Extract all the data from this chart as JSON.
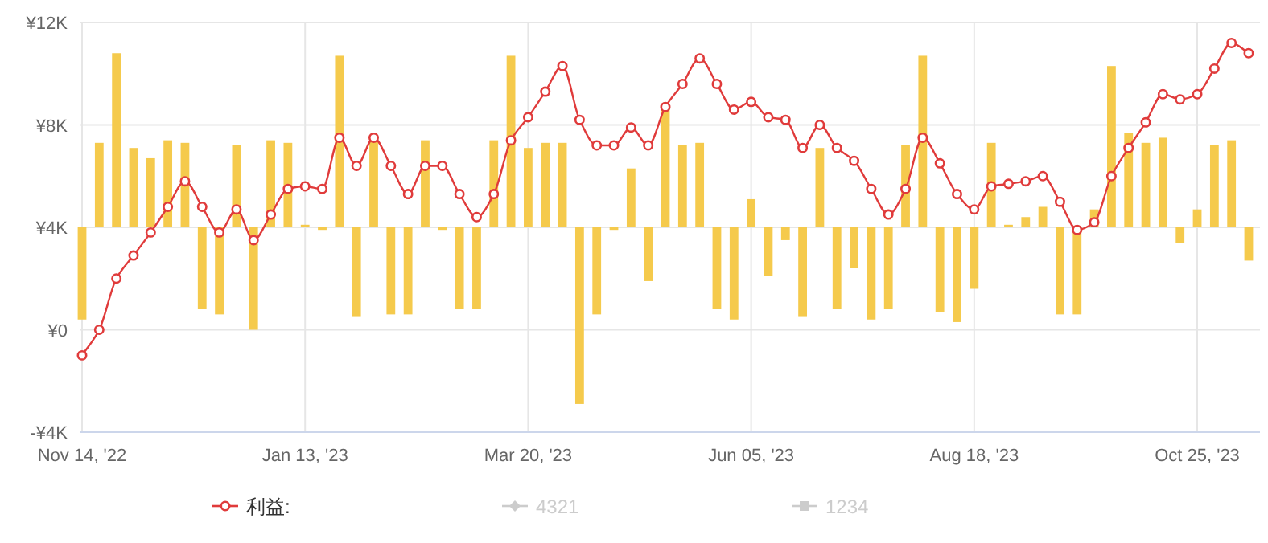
{
  "chart_data": {
    "type": "line",
    "categories": [
      "Nov 14, '22",
      null,
      null,
      null,
      null,
      null,
      null,
      null,
      null,
      null,
      null,
      null,
      null,
      "Jan 13, '23",
      null,
      null,
      null,
      null,
      null,
      null,
      null,
      null,
      null,
      null,
      null,
      null,
      "Mar 20, '23",
      null,
      null,
      null,
      null,
      null,
      null,
      null,
      null,
      null,
      null,
      null,
      null,
      "Jun 05, '23",
      null,
      null,
      null,
      null,
      null,
      null,
      null,
      null,
      null,
      null,
      null,
      null,
      "Aug 18, '23",
      null,
      null,
      null,
      null,
      null,
      null,
      null,
      null,
      null,
      null,
      null,
      null,
      "Oct 25, '23",
      null,
      null,
      null
    ],
    "series": [
      {
        "name": "利益:",
        "color": "#e03b3b",
        "marker": "circle",
        "values": [
          -1000,
          0,
          2000,
          2900,
          3800,
          4800,
          5800,
          4800,
          3800,
          4700,
          3500,
          4500,
          5500,
          5600,
          5500,
          7500,
          6400,
          7500,
          6400,
          5300,
          6400,
          6400,
          5300,
          4400,
          5300,
          7400,
          8300,
          9300,
          10300,
          8200,
          7200,
          7200,
          7900,
          7200,
          8700,
          9600,
          10600,
          9600,
          8600,
          8900,
          8300,
          8200,
          7100,
          8000,
          7100,
          6600,
          5500,
          4500,
          5500,
          7500,
          6500,
          5300,
          4700,
          5600,
          5700,
          5800,
          6000,
          5000,
          3900,
          4200,
          6000,
          7100,
          8100,
          9200,
          9000,
          9200,
          10200,
          11200,
          10800
        ]
      },
      {
        "type": "bar",
        "color": "#f5ca4c",
        "base": [
          4000,
          4000,
          4000,
          4000,
          4000,
          4000,
          4000,
          4000,
          4000,
          4000,
          4000,
          4000,
          4000,
          4000,
          4000,
          4000,
          4000,
          4000,
          4000,
          4000,
          4000,
          4000,
          4000,
          4000,
          4000,
          4000,
          4000,
          4000,
          4000,
          4000,
          4000,
          4000,
          4000,
          4000,
          4000,
          4000,
          4000,
          4000,
          4000,
          4000,
          4000,
          4000,
          4000,
          4000,
          4000,
          4000,
          4000,
          4000,
          4000,
          4000,
          4000,
          4000,
          4000,
          4000,
          4000,
          4000,
          4000,
          4000,
          4000,
          4000,
          4000,
          4000,
          4000,
          4000,
          4000,
          4000,
          4000,
          4000,
          4000
        ],
        "values": [
          -3600,
          3300,
          6800,
          3100,
          2700,
          3400,
          3300,
          -3200,
          -3400,
          3200,
          -4000,
          3400,
          3300,
          100,
          -100,
          6700,
          -3500,
          3400,
          -3400,
          -3400,
          3400,
          -100,
          -3200,
          -3200,
          3400,
          6700,
          3100,
          3300,
          3300,
          -6900,
          -3400,
          -100,
          2300,
          -2100,
          4600,
          3200,
          3300,
          -3200,
          -3600,
          1100,
          -1900,
          -500,
          -3500,
          3100,
          -3200,
          -1600,
          -3600,
          -3200,
          3200,
          6700,
          -3300,
          -3700,
          -2400,
          3300,
          100,
          400,
          800,
          -3400,
          -3400,
          700,
          6300,
          3700,
          3300,
          3500,
          -600,
          700,
          3200,
          3400,
          -1300
        ]
      },
      {
        "name": "4321",
        "color": "#cccccc",
        "marker": "diamond",
        "values": [
          null,
          null,
          null,
          null,
          null,
          null,
          null,
          null,
          null,
          null,
          null,
          null,
          null,
          null,
          null,
          null,
          null,
          null,
          null,
          null,
          null,
          null,
          null,
          null,
          null,
          null,
          null,
          null,
          null,
          null,
          null,
          null,
          null,
          null,
          null,
          null,
          null,
          null,
          null,
          null,
          null,
          null,
          null,
          null,
          null,
          null,
          null,
          null,
          null,
          null,
          null,
          null,
          null,
          null,
          null,
          null,
          null,
          null,
          null,
          null,
          null,
          null,
          null,
          null,
          null,
          null,
          null,
          null,
          null
        ]
      },
      {
        "name": "1234",
        "color": "#cccccc",
        "marker": "square",
        "values": [
          null,
          null,
          null,
          null,
          null,
          null,
          null,
          null,
          null,
          null,
          null,
          null,
          null,
          null,
          null,
          null,
          null,
          null,
          null,
          null,
          null,
          null,
          null,
          null,
          null,
          null,
          null,
          null,
          null,
          null,
          null,
          null,
          null,
          null,
          null,
          null,
          null,
          null,
          null,
          null,
          null,
          null,
          null,
          null,
          null,
          null,
          null,
          null,
          null,
          null,
          null,
          null,
          null,
          null,
          null,
          null,
          null,
          null,
          null,
          null,
          null,
          null,
          null,
          null,
          null,
          null,
          null,
          null,
          null
        ]
      }
    ],
    "ylim": [
      -4000,
      12000
    ],
    "yticks": [
      {
        "value": -4000,
        "label": "-¥4K"
      },
      {
        "value": 0,
        "label": "¥0"
      },
      {
        "value": 4000,
        "label": "¥4K"
      },
      {
        "value": 8000,
        "label": "¥8K"
      },
      {
        "value": 12000,
        "label": "¥12K"
      }
    ],
    "grid": true,
    "legend": "bottom"
  }
}
